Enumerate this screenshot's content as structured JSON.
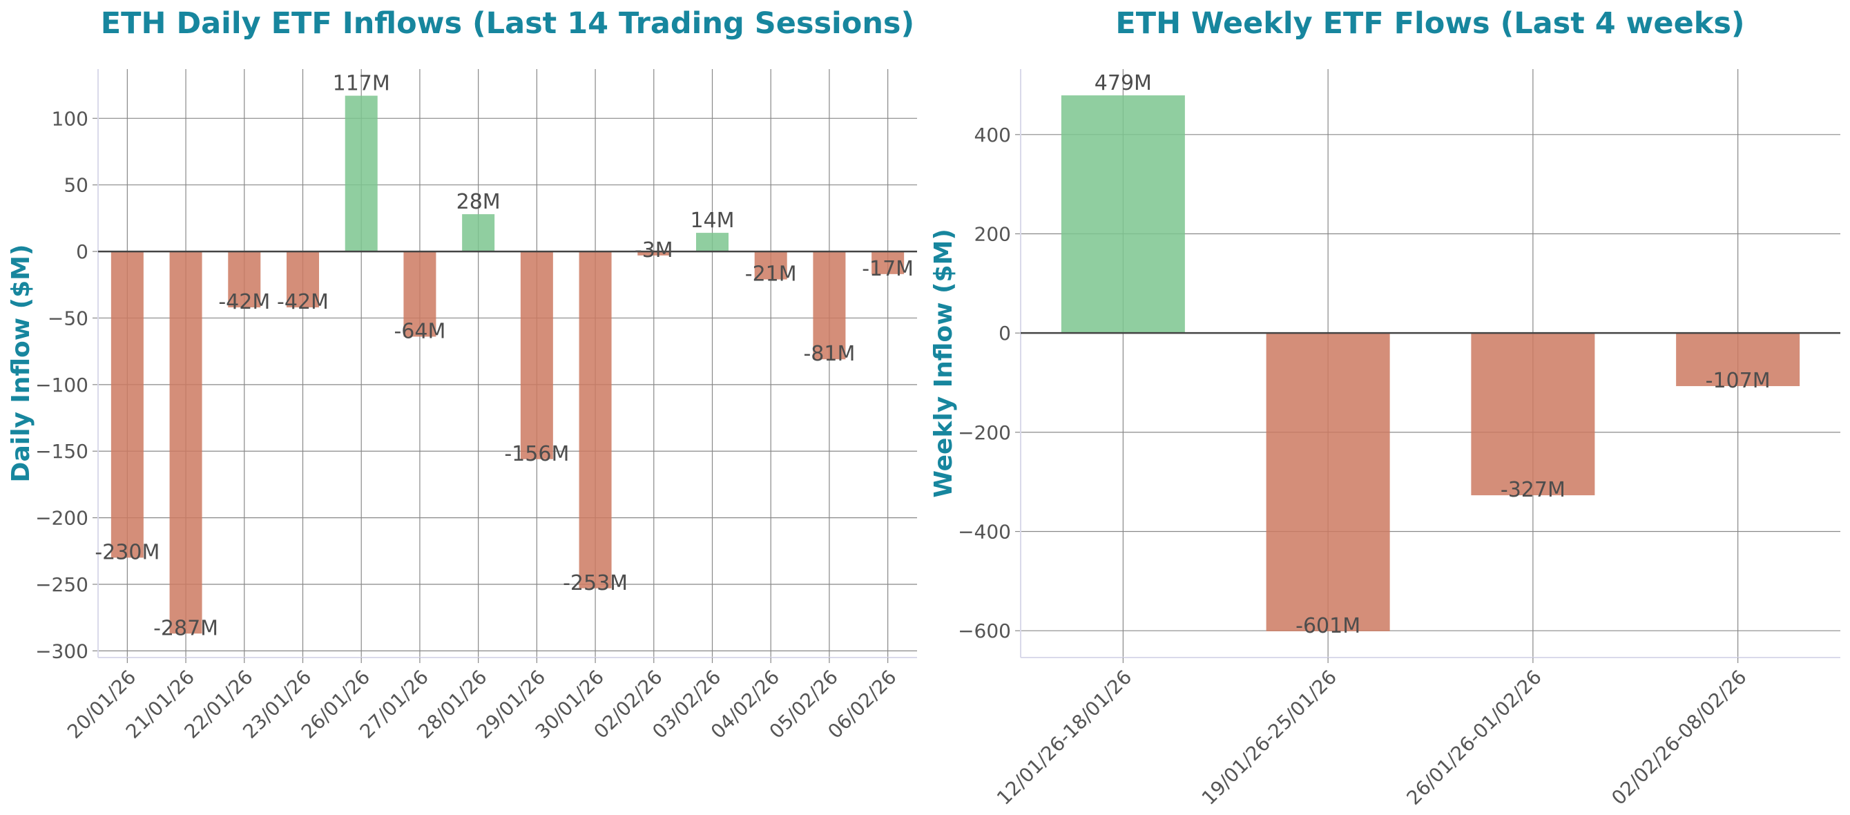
{
  "colors": {
    "title": "#17869e",
    "positive": "#7cc68f",
    "negative": "#cc7a61",
    "grid": "#888888",
    "zero_line": "#444444",
    "axis_spine": "#d9d9ea",
    "text": "#4d4d4d"
  },
  "chart_data": [
    {
      "type": "bar",
      "title": "ETH Daily ETF Inflows (Last 14 Trading Sessions)",
      "xlabel": "",
      "ylabel": "Daily Inflow ($M)",
      "categories": [
        "20/01/26",
        "21/01/26",
        "22/01/26",
        "23/01/26",
        "26/01/26",
        "27/01/26",
        "28/01/26",
        "29/01/26",
        "30/01/26",
        "02/02/26",
        "03/02/26",
        "04/02/26",
        "05/02/26",
        "06/02/26"
      ],
      "values": [
        -230,
        -287,
        -42,
        -42,
        117,
        -64,
        28,
        -156,
        -253,
        -3,
        14,
        -21,
        -81,
        -17
      ],
      "data_labels": [
        "-230M",
        "-287M",
        "-42M",
        "-42M",
        "117M",
        "-64M",
        "28M",
        "-156M",
        "-253M",
        "-3M",
        "14M",
        "-21M",
        "-81M",
        "-17M"
      ],
      "ylim": [
        -305,
        137
      ],
      "yticks": [
        100,
        50,
        0,
        -50,
        -100,
        -150,
        -200,
        -250,
        -300
      ],
      "ytick_labels": [
        "100",
        "50",
        "0",
        "−50",
        "−100",
        "−150",
        "−200",
        "−250",
        "−300"
      ],
      "grid": true
    },
    {
      "type": "bar",
      "title": "ETH Weekly ETF Flows (Last 4 weeks)",
      "xlabel": "",
      "ylabel": "Weekly Inflow ($M)",
      "categories": [
        "12/01/26-18/01/26",
        "19/01/26-25/01/26",
        "26/01/26-01/02/26",
        "02/02/26-08/02/26"
      ],
      "values": [
        479,
        -601,
        -327,
        -107
      ],
      "data_labels": [
        "479M",
        "-601M",
        "-327M",
        "-107M"
      ],
      "ylim": [
        -654,
        532
      ],
      "yticks": [
        400,
        200,
        0,
        -200,
        -400,
        -600
      ],
      "ytick_labels": [
        "400",
        "200",
        "0",
        "−200",
        "−400",
        "−600"
      ],
      "grid": true
    }
  ]
}
